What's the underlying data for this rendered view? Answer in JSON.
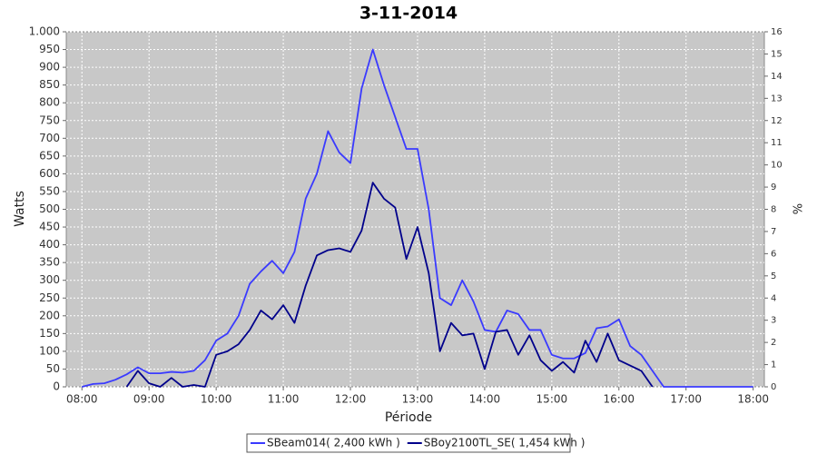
{
  "chart_data": {
    "type": "line",
    "title": "3-11-2014",
    "x_label": "Période",
    "y_label": "Watts",
    "y2_label": "%",
    "x": [
      480,
      490,
      500,
      510,
      520,
      530,
      540,
      550,
      560,
      570,
      580,
      590,
      600,
      610,
      620,
      630,
      640,
      650,
      660,
      670,
      680,
      690,
      700,
      710,
      720,
      730,
      740,
      750,
      760,
      770,
      780,
      790,
      800,
      810,
      820,
      830,
      840,
      850,
      860,
      870,
      880,
      890,
      900,
      910,
      920,
      930,
      940,
      950,
      960,
      970,
      980,
      990,
      1000,
      1010,
      1020,
      1030,
      1040,
      1050,
      1060,
      1070,
      1080
    ],
    "xlim": [
      466,
      1090
    ],
    "xticks": [
      {
        "value": 480,
        "label": "08:00"
      },
      {
        "value": 540,
        "label": "09:00"
      },
      {
        "value": 600,
        "label": "10:00"
      },
      {
        "value": 660,
        "label": "11:00"
      },
      {
        "value": 720,
        "label": "12:00"
      },
      {
        "value": 780,
        "label": "13:00"
      },
      {
        "value": 840,
        "label": "14:00"
      },
      {
        "value": 900,
        "label": "15:00"
      },
      {
        "value": 960,
        "label": "16:00"
      },
      {
        "value": 1020,
        "label": "17:00"
      },
      {
        "value": 1080,
        "label": "18:00"
      }
    ],
    "ylim": [
      0,
      1000
    ],
    "yticks": [
      0,
      50,
      100,
      150,
      200,
      250,
      300,
      350,
      400,
      450,
      500,
      550,
      600,
      650,
      700,
      750,
      800,
      850,
      900,
      950,
      {
        "value": 1000,
        "label": "1.000"
      }
    ],
    "y2lim": [
      0,
      16
    ],
    "y2ticks": [
      0,
      1,
      2,
      3,
      4,
      5,
      6,
      7,
      8,
      9,
      10,
      11,
      12,
      13,
      14,
      15,
      16
    ],
    "grid": true,
    "series": [
      {
        "name": "SBeam014( 2,400 kWh )",
        "color": "#3a3aff",
        "values": [
          0,
          8,
          10,
          20,
          35,
          55,
          38,
          38,
          42,
          40,
          45,
          75,
          130,
          150,
          200,
          290,
          325,
          355,
          320,
          380,
          530,
          600,
          720,
          660,
          630,
          840,
          950,
          850,
          760,
          670,
          670,
          500,
          250,
          230,
          300,
          240,
          160,
          155,
          215,
          205,
          160,
          160,
          90,
          80,
          80,
          95,
          165,
          170,
          190,
          115,
          90,
          45,
          0,
          0,
          0,
          0,
          0,
          0,
          0,
          0,
          0
        ]
      },
      {
        "name": "SBoy2100TL_SE( 1,454 kWh )",
        "color": "#00008b",
        "values": [
          null,
          null,
          null,
          null,
          0,
          45,
          10,
          0,
          25,
          0,
          5,
          0,
          90,
          100,
          120,
          160,
          215,
          190,
          230,
          180,
          285,
          370,
          385,
          390,
          380,
          440,
          575,
          530,
          505,
          360,
          450,
          320,
          100,
          180,
          145,
          150,
          50,
          155,
          160,
          90,
          145,
          75,
          45,
          70,
          40,
          130,
          70,
          150,
          75,
          60,
          45,
          0,
          null,
          null,
          null,
          null,
          null,
          null,
          null,
          null,
          null
        ]
      }
    ]
  }
}
